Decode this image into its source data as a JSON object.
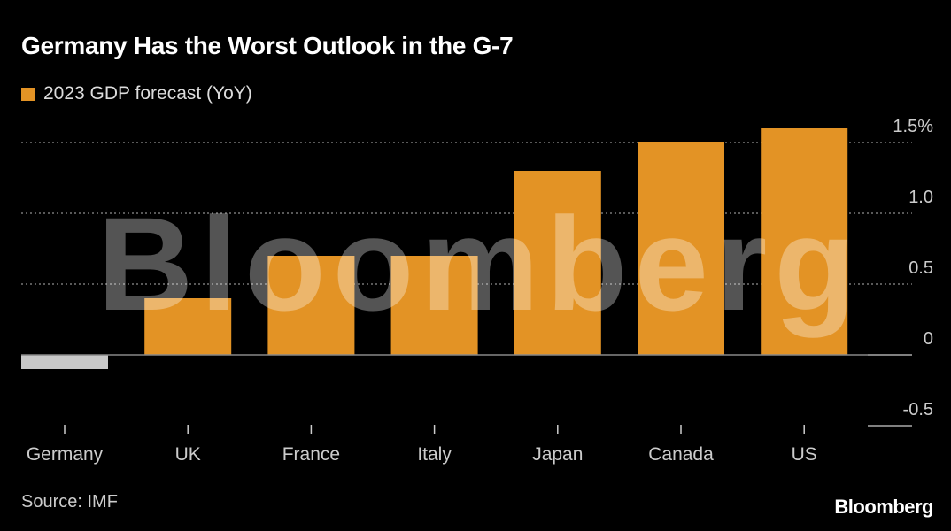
{
  "chart_data": {
    "type": "bar",
    "title": "Germany Has the Worst Outlook in the G-7",
    "categories": [
      "Germany",
      "UK",
      "France",
      "Italy",
      "Japan",
      "Canada",
      "US"
    ],
    "series": [
      {
        "name": "2023 GDP forecast (YoY)",
        "values": [
          -0.1,
          0.4,
          0.7,
          0.7,
          1.3,
          1.5,
          1.6
        ]
      }
    ],
    "ylim": [
      -0.5,
      1.5
    ],
    "yticks": [
      1.5,
      1.0,
      0.5,
      0,
      -0.5
    ],
    "ytick_labels": [
      "1.5%",
      "1.0",
      "0.5",
      "0",
      "-0.5"
    ],
    "grid": true,
    "legend": "top-left",
    "colors": {
      "positive": "#E39325",
      "negative": "#C8C8C8"
    }
  },
  "source": "Source: IMF",
  "watermark": "Bloomberg",
  "logo": "Bloomberg"
}
